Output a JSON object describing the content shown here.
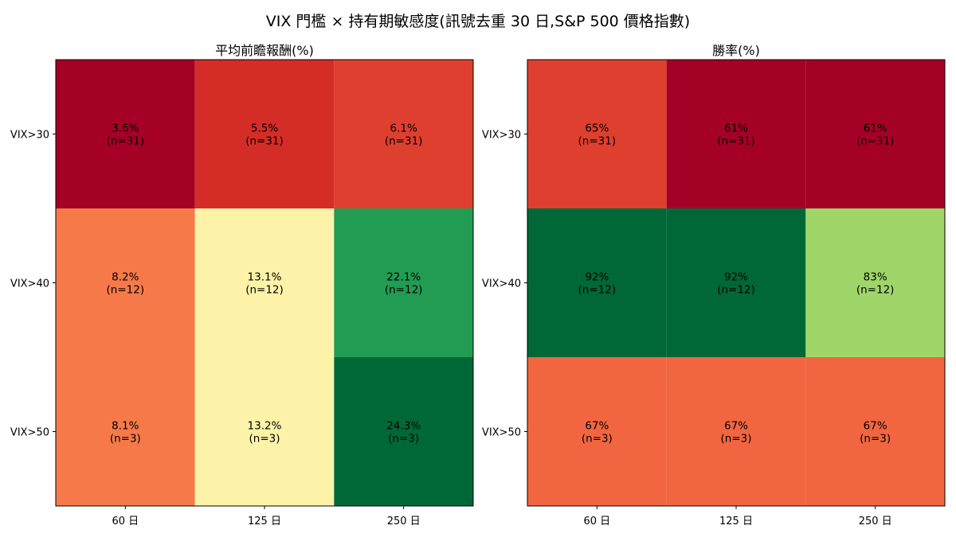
{
  "suptitle": "VIX 門檻 × 持有期敏感度(訊號去重 30 日,S&P 500 價格指數)",
  "chart_data": [
    {
      "type": "heatmap",
      "title": "平均前瞻報酬(%)",
      "x_categories": [
        "60 日",
        "125 日",
        "250 日"
      ],
      "y_categories": [
        "VIX>30",
        "VIX>40",
        "VIX>50"
      ],
      "colormap": "RdYlGn",
      "vmin": 3.6,
      "vmax": 24.3,
      "values": [
        [
          3.6,
          5.5,
          6.1
        ],
        [
          8.2,
          13.1,
          22.1
        ],
        [
          8.1,
          13.2,
          24.3
        ]
      ],
      "labels": [
        [
          "3.6%",
          "5.5%",
          "6.1%"
        ],
        [
          "8.2%",
          "13.1%",
          "22.1%"
        ],
        [
          "8.1%",
          "13.2%",
          "24.3%"
        ]
      ],
      "n_labels": [
        [
          "(n=31)",
          "(n=31)",
          "(n=31)"
        ],
        [
          "(n=12)",
          "(n=12)",
          "(n=12)"
        ],
        [
          "(n=3)",
          "(n=3)",
          "(n=3)"
        ]
      ],
      "cell_colors": [
        [
          "#a50026",
          "#d42d27",
          "#de3f2e"
        ],
        [
          "#f67a49",
          "#fdf3a8",
          "#219c52"
        ],
        [
          "#f67a49",
          "#fdf3a8",
          "#006837"
        ]
      ]
    },
    {
      "type": "heatmap",
      "title": "勝率(%)",
      "x_categories": [
        "60 日",
        "125 日",
        "250 日"
      ],
      "y_categories": [
        "VIX>30",
        "VIX>40",
        "VIX>50"
      ],
      "colormap": "RdYlGn",
      "vmin": 61,
      "vmax": 92,
      "values": [
        [
          65,
          61,
          61
        ],
        [
          92,
          92,
          83
        ],
        [
          67,
          67,
          67
        ]
      ],
      "labels": [
        [
          "65%",
          "61%",
          "61%"
        ],
        [
          "92%",
          "92%",
          "83%"
        ],
        [
          "67%",
          "67%",
          "67%"
        ]
      ],
      "n_labels": [
        [
          "(n=31)",
          "(n=31)",
          "(n=31)"
        ],
        [
          "(n=12)",
          "(n=12)",
          "(n=12)"
        ],
        [
          "(n=3)",
          "(n=3)",
          "(n=3)"
        ]
      ],
      "cell_colors": [
        [
          "#de3f2e",
          "#a50026",
          "#a50026"
        ],
        [
          "#006837",
          "#006837",
          "#a0d669"
        ],
        [
          "#f16640",
          "#f16640",
          "#f16640"
        ]
      ]
    }
  ]
}
